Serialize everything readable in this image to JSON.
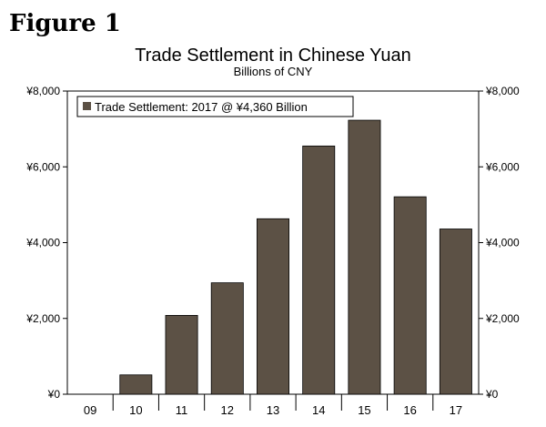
{
  "figure_label": "Figure 1",
  "chart_data": {
    "type": "bar",
    "title": "Trade Settlement in Chinese Yuan",
    "subtitle": "Billions of CNY",
    "categories": [
      "09",
      "10",
      "11",
      "12",
      "13",
      "14",
      "15",
      "16",
      "17"
    ],
    "series": [
      {
        "name": "Trade Settlement: 2017 @ ¥4,360 Billion",
        "values": [
          0,
          510,
          2080,
          2940,
          4630,
          6550,
          7230,
          5210,
          4360
        ]
      }
    ],
    "ylim": [
      0,
      8000
    ],
    "y_ticks": [
      0,
      2000,
      4000,
      6000,
      8000
    ],
    "y_tick_labels": [
      "¥0",
      "¥2,000",
      "¥4,000",
      "¥6,000",
      "¥8,000"
    ],
    "secondary_y_axis": true,
    "grid": false,
    "legend_position": "top-left",
    "bar_color": "#5c5145"
  }
}
